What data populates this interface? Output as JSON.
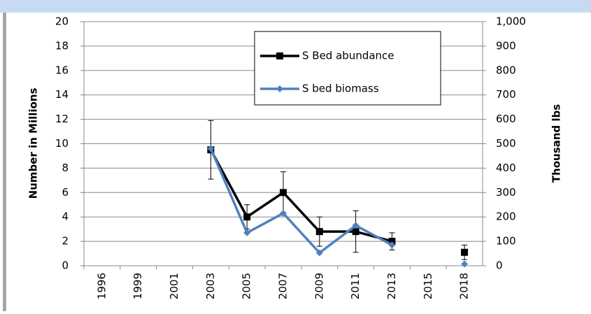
{
  "chart_data": {
    "type": "line",
    "y_label": "Number in Millions",
    "y2_label": "Thousand lbs",
    "categories": [
      "1996",
      "1999",
      "2001",
      "2003",
      "2005",
      "2007",
      "2009",
      "2011",
      "2013",
      "2015",
      "2018"
    ],
    "series": [
      {
        "name": "S Bed abundance",
        "color": "#000000",
        "marker": "square",
        "values": [
          null,
          null,
          null,
          9.5,
          4,
          6,
          2.8,
          2.8,
          2.0,
          null,
          1.1
        ],
        "errors": [
          null,
          null,
          null,
          2.4,
          1,
          1.7,
          1.2,
          1.7,
          0.7,
          null,
          0.6
        ]
      },
      {
        "name": "S bed biomass",
        "color": "#4f81bd",
        "marker": "diamond",
        "axis": "y2",
        "values": [
          null,
          null,
          null,
          480,
          135,
          215,
          53,
          165,
          85,
          null,
          7
        ]
      }
    ],
    "ylim": [
      0,
      20
    ],
    "yticks": [
      0,
      2,
      4,
      6,
      8,
      10,
      12,
      14,
      16,
      18,
      20
    ],
    "y2lim": [
      0,
      1000
    ],
    "y2ticks": [
      0,
      100,
      200,
      300,
      400,
      500,
      600,
      700,
      800,
      900,
      {
        "value": 1000,
        "label": "1,000"
      }
    ],
    "grid": true,
    "legend": "top-right"
  }
}
